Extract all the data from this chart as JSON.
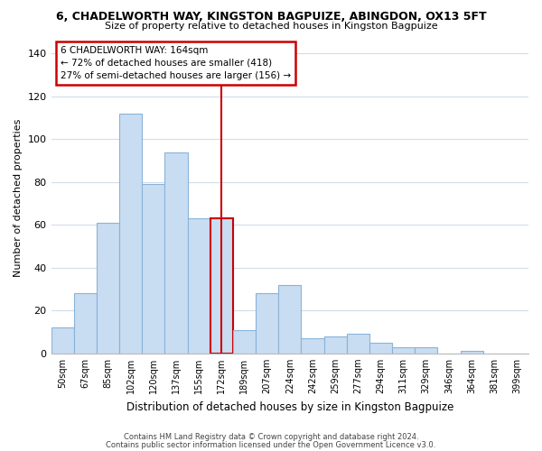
{
  "title": "6, CHADELWORTH WAY, KINGSTON BAGPUIZE, ABINGDON, OX13 5FT",
  "subtitle": "Size of property relative to detached houses in Kingston Bagpuize",
  "xlabel": "Distribution of detached houses by size in Kingston Bagpuize",
  "ylabel": "Number of detached properties",
  "bar_labels": [
    "50sqm",
    "67sqm",
    "85sqm",
    "102sqm",
    "120sqm",
    "137sqm",
    "155sqm",
    "172sqm",
    "189sqm",
    "207sqm",
    "224sqm",
    "242sqm",
    "259sqm",
    "277sqm",
    "294sqm",
    "311sqm",
    "329sqm",
    "346sqm",
    "364sqm",
    "381sqm",
    "399sqm"
  ],
  "bar_values": [
    12,
    28,
    61,
    112,
    79,
    94,
    63,
    63,
    11,
    28,
    32,
    7,
    8,
    9,
    5,
    3,
    3,
    0,
    1,
    0,
    0
  ],
  "bar_color": "#c9ddf2",
  "bar_edge_color": "#89b3d9",
  "highlight_bar_index": 7,
  "highlight_bar_edge_color": "#cc0000",
  "vline_color": "#cc0000",
  "ylim": [
    0,
    145
  ],
  "annotation_box_text": "6 CHADELWORTH WAY: 164sqm\n← 72% of detached houses are smaller (418)\n27% of semi-detached houses are larger (156) →",
  "annotation_box_edge_color": "#cc0000",
  "annotation_box_facecolor": "#ffffff",
  "footer_line1": "Contains HM Land Registry data © Crown copyright and database right 2024.",
  "footer_line2": "Contains public sector information licensed under the Open Government Licence v3.0.",
  "bg_color": "#ffffff",
  "grid_color": "#d0dce8"
}
